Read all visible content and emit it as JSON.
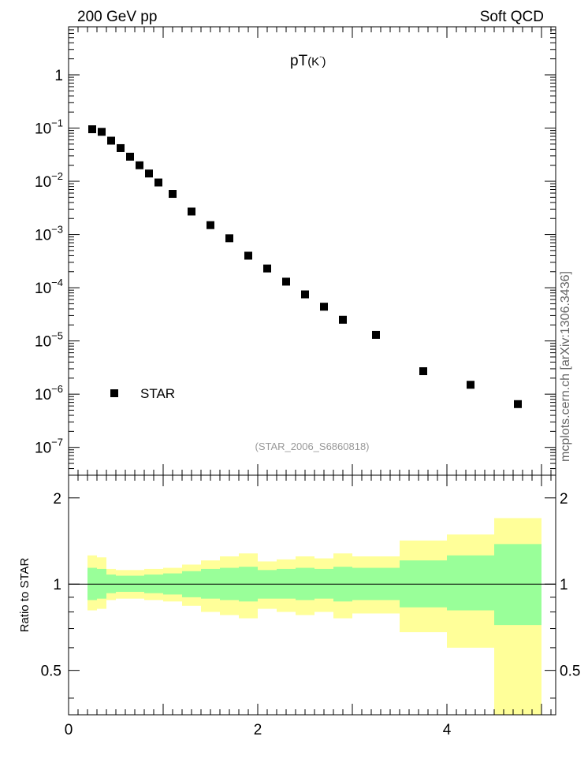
{
  "header": {
    "left": "200 GeV pp",
    "right": "Soft QCD"
  },
  "side_label": "mcplots.cern.ch [arXiv:1306.3436]",
  "chart_data": [
    {
      "type": "scatter",
      "title_main": "pT",
      "title_sub": "(K",
      "title_sup": "-",
      "title_close": ")",
      "watermark": "(STAR_2006_S6860818)",
      "y_scale": "log",
      "xlim": [
        0,
        5.15
      ],
      "ylim": [
        3e-08,
        8
      ],
      "y_ticks": [
        {
          "value": 1,
          "base": "1",
          "exp": ""
        },
        {
          "value": 0.1,
          "base": "10",
          "exp": "−1"
        },
        {
          "value": 0.01,
          "base": "10",
          "exp": "−2"
        },
        {
          "value": 0.001,
          "base": "10",
          "exp": "−3"
        },
        {
          "value": 0.0001,
          "base": "10",
          "exp": "−4"
        },
        {
          "value": 1e-05,
          "base": "10",
          "exp": "−5"
        },
        {
          "value": 1e-06,
          "base": "10",
          "exp": "−6"
        },
        {
          "value": 1e-07,
          "base": "10",
          "exp": "−7"
        }
      ],
      "legend": {
        "label": "STAR",
        "position": "bottom-left"
      },
      "series": [
        {
          "name": "STAR",
          "marker": "square",
          "color": "#000000",
          "x": [
            0.25,
            0.35,
            0.45,
            0.55,
            0.65,
            0.75,
            0.85,
            0.95,
            1.1,
            1.3,
            1.5,
            1.7,
            1.9,
            2.1,
            2.3,
            2.5,
            2.7,
            2.9,
            3.25,
            3.75,
            4.25,
            4.75
          ],
          "y": [
            0.095,
            0.085,
            0.058,
            0.042,
            0.029,
            0.02,
            0.014,
            0.0095,
            0.0058,
            0.0027,
            0.0015,
            0.00085,
            0.0004,
            0.00023,
            0.00013,
            7.5e-05,
            4.4e-05,
            2.5e-05,
            1.3e-05,
            2.7e-06,
            1.5e-06,
            6.5e-07
          ]
        }
      ]
    },
    {
      "type": "area",
      "ylabel": "Ratio to STAR",
      "y_scale": "log",
      "xlim": [
        0,
        5.15
      ],
      "ylim": [
        0.35,
        2.4
      ],
      "y_ticks": [
        {
          "value": 2,
          "label": "2"
        },
        {
          "value": 1,
          "label": "1"
        },
        {
          "value": 0.5,
          "label": "0.5"
        }
      ],
      "x_ticks": [
        {
          "value": 0,
          "label": "0"
        },
        {
          "value": 2,
          "label": "2"
        },
        {
          "value": 4,
          "label": "4"
        }
      ],
      "reference_line": 1,
      "colors": {
        "inner": "#99ff99",
        "outer": "#ffff99"
      },
      "bands": {
        "edges": [
          0.2,
          0.3,
          0.4,
          0.5,
          0.6,
          0.7,
          0.8,
          0.9,
          1.0,
          1.2,
          1.4,
          1.6,
          1.8,
          2.0,
          2.2,
          2.4,
          2.6,
          2.8,
          3.0,
          3.5,
          4.0,
          4.5,
          5.0
        ],
        "inner_high": [
          1.14,
          1.13,
          1.08,
          1.07,
          1.07,
          1.07,
          1.08,
          1.08,
          1.09,
          1.11,
          1.13,
          1.14,
          1.15,
          1.12,
          1.13,
          1.14,
          1.13,
          1.15,
          1.14,
          1.21,
          1.26,
          1.38
        ],
        "inner_low": [
          0.88,
          0.89,
          0.93,
          0.94,
          0.94,
          0.94,
          0.93,
          0.93,
          0.92,
          0.9,
          0.89,
          0.88,
          0.87,
          0.89,
          0.89,
          0.88,
          0.89,
          0.87,
          0.88,
          0.83,
          0.81,
          0.72
        ],
        "outer_high": [
          1.26,
          1.24,
          1.13,
          1.12,
          1.12,
          1.12,
          1.13,
          1.13,
          1.14,
          1.17,
          1.21,
          1.25,
          1.28,
          1.2,
          1.22,
          1.25,
          1.23,
          1.28,
          1.25,
          1.42,
          1.49,
          1.7
        ],
        "outer_low": [
          0.81,
          0.82,
          0.88,
          0.89,
          0.89,
          0.89,
          0.88,
          0.88,
          0.87,
          0.84,
          0.8,
          0.78,
          0.76,
          0.82,
          0.8,
          0.78,
          0.8,
          0.76,
          0.79,
          0.68,
          0.6,
          0.35
        ]
      }
    }
  ]
}
